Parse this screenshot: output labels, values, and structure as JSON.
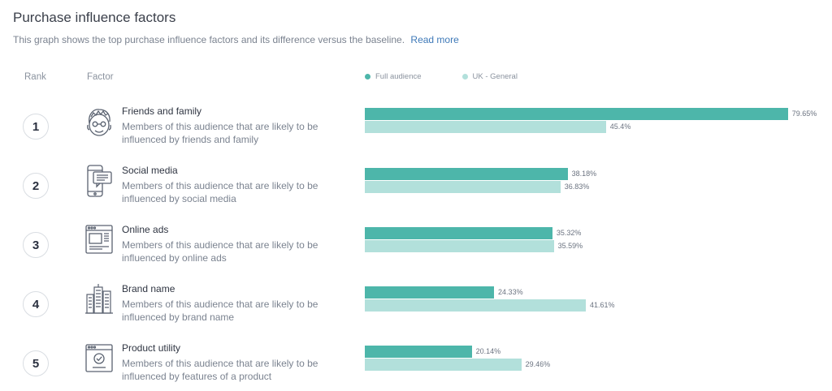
{
  "header": {
    "title": "Purchase influence factors",
    "subtitle": "This graph shows the top purchase influence factors and its difference versus the baseline.",
    "read_more": "Read more"
  },
  "columns": {
    "rank": "Rank",
    "factor": "Factor"
  },
  "colors": {
    "full": "#4db6aa",
    "base": "#b2e0db"
  },
  "chart_data": {
    "type": "bar",
    "orientation": "horizontal",
    "title": "Purchase influence factors",
    "legend_position": "top",
    "xlim": [
      0,
      80
    ],
    "categories": [
      "Friends and family",
      "Social media",
      "Online ads",
      "Brand name",
      "Product utility"
    ],
    "series": [
      {
        "name": "Full audience",
        "values": [
          79.65,
          38.18,
          35.32,
          24.33,
          20.14
        ],
        "labels": [
          "79.65%",
          "38.18%",
          "35.32%",
          "24.33%",
          "20.14%"
        ]
      },
      {
        "name": "UK - General",
        "values": [
          45.4,
          36.83,
          35.59,
          41.61,
          29.46
        ],
        "labels": [
          "45.4%",
          "36.83%",
          "35.59%",
          "41.61%",
          "29.46%"
        ]
      }
    ]
  },
  "rows": [
    {
      "rank": "1",
      "icon": "friends-family-icon",
      "name": "Friends and family",
      "desc": "Members of this audience that are likely to be influenced by friends and family"
    },
    {
      "rank": "2",
      "icon": "social-media-icon",
      "name": "Social media",
      "desc": "Members of this audience that are likely to be influenced by social media"
    },
    {
      "rank": "3",
      "icon": "online-ads-icon",
      "name": "Online ads",
      "desc": "Members of this audience that are likely to be influenced by online ads"
    },
    {
      "rank": "4",
      "icon": "brand-name-icon",
      "name": "Brand name",
      "desc": "Members of this audience that are likely to be influenced by brand name"
    },
    {
      "rank": "5",
      "icon": "product-utility-icon",
      "name": "Product utility",
      "desc": "Members of this audience that are likely to be influenced by features of a product"
    }
  ]
}
